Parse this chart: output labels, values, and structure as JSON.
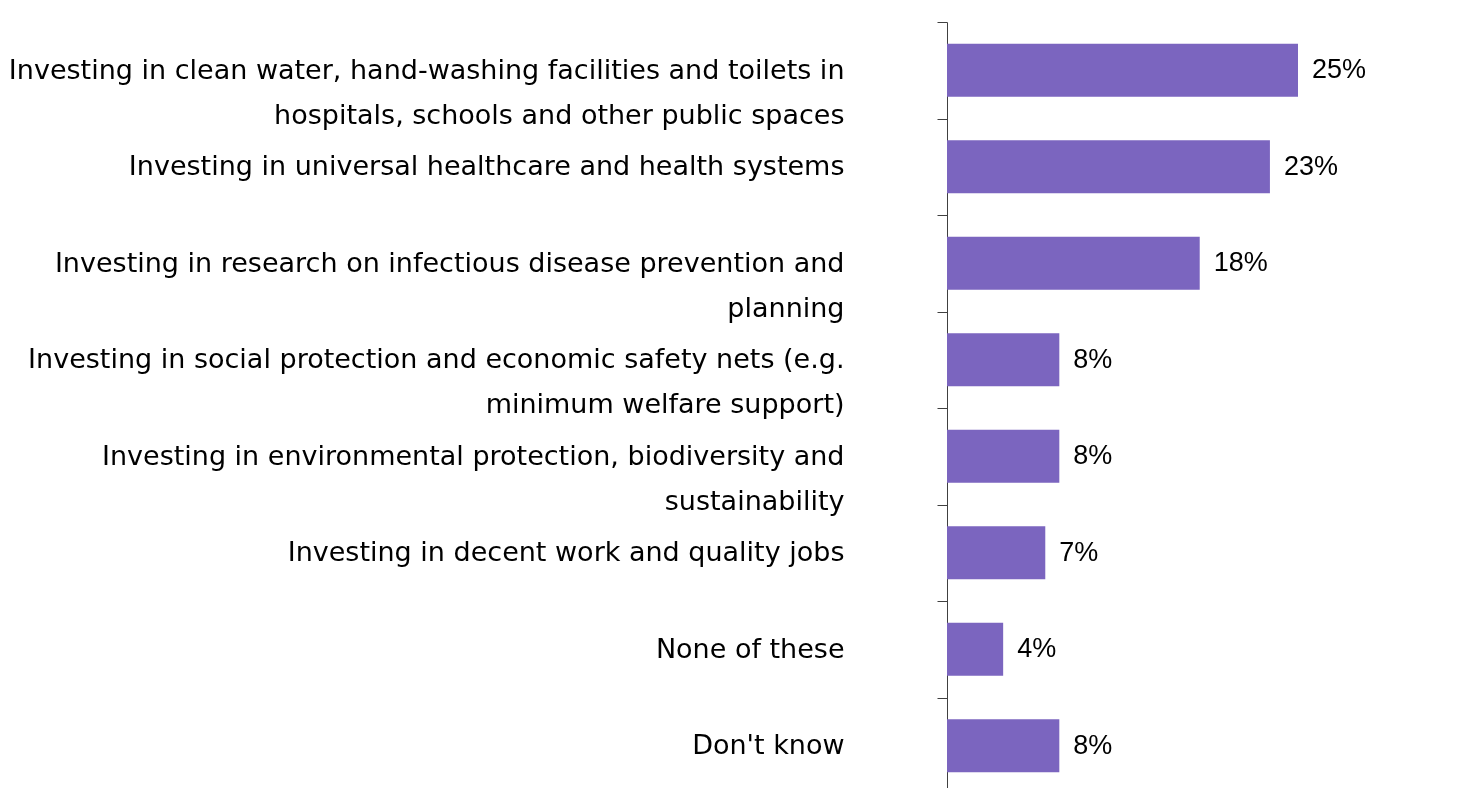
{
  "chart_data": {
    "type": "bar",
    "orientation": "horizontal",
    "categories": [
      "Investing in clean water, hand-washing facilities and toilets in hospitals, schools and other public spaces",
      "Investing in universal healthcare and health systems",
      "Investing in research on infectious disease prevention and planning",
      "Investing in social protection and economic safety nets (e.g. minimum welfare support)",
      "Investing in environmental protection, biodiversity and sustainability",
      "Investing in decent work and quality jobs",
      "None of these",
      "Don't know"
    ],
    "values": [
      25,
      23,
      18,
      8,
      8,
      7,
      4,
      8
    ],
    "value_labels": [
      "25%",
      "23%",
      "18%",
      "8%",
      "8%",
      "7%",
      "4%",
      "8%"
    ],
    "color": "#7b65bf"
  }
}
